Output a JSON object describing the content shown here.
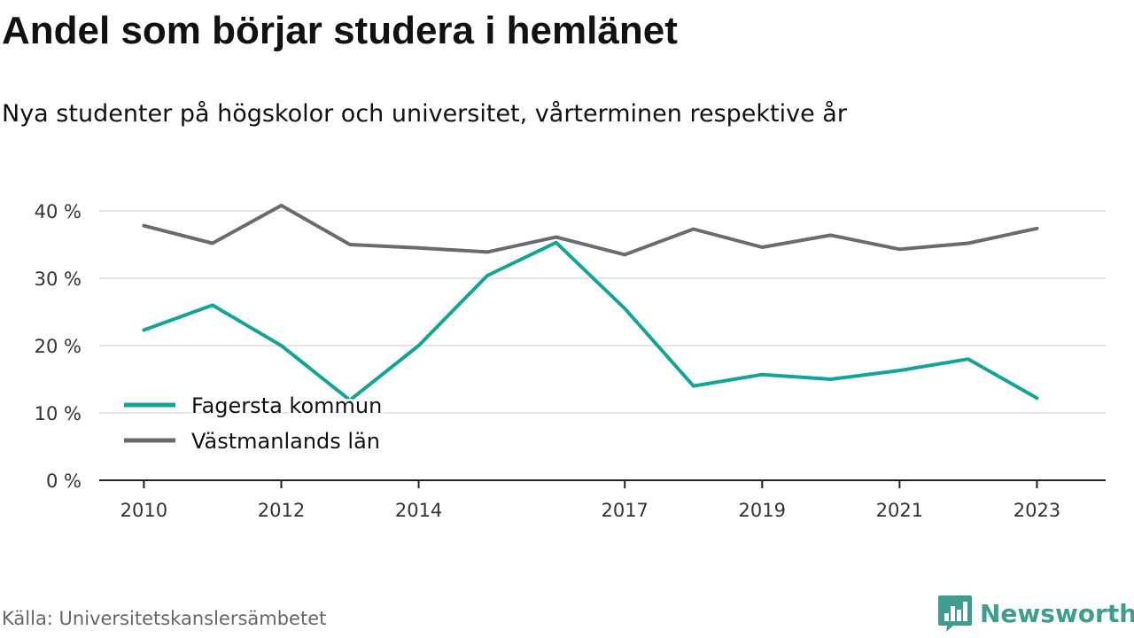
{
  "header": {
    "title": "Andel som börjar studera i hemlänet",
    "subtitle": "Nya studenter på högskolor och universitet, vårterminen respektive år"
  },
  "footer": {
    "source": "Källa: Universitetskanslersämbetet",
    "brand": "Newsworthy",
    "brand_icon": "bar-chart-logo-icon"
  },
  "colors": {
    "fagersta": "#12a596",
    "vastmanland": "#6b6a72",
    "grid": "#dedede",
    "axis": "#222222",
    "brand": "#3f9d90"
  },
  "chart_data": {
    "type": "line",
    "x": [
      2010,
      2011,
      2012,
      2013,
      2014,
      2015,
      2016,
      2017,
      2018,
      2019,
      2020,
      2021,
      2022,
      2023
    ],
    "x_tick_labels": [
      "2010",
      "2012",
      "2014",
      "2017",
      "2019",
      "2021",
      "2023"
    ],
    "y_tick_labels": [
      "0 %",
      "10 %",
      "20 %",
      "30 %",
      "40 %"
    ],
    "ylim": [
      0,
      40
    ],
    "y_unit": "%",
    "grid": true,
    "legend_position": "bottom-left",
    "series": [
      {
        "name": "Fagersta kommun",
        "color": "#12a596",
        "values": [
          22.3,
          26.0,
          20.0,
          11.9,
          20.0,
          30.4,
          35.3,
          25.5,
          14.0,
          15.7,
          15.0,
          16.3,
          18.0,
          12.2
        ]
      },
      {
        "name": "Västmanlands län",
        "color": "#6b6a72",
        "values": [
          37.8,
          35.2,
          40.8,
          35.0,
          34.5,
          33.9,
          36.1,
          33.5,
          37.3,
          34.6,
          36.4,
          34.3,
          35.2,
          37.4
        ]
      }
    ]
  }
}
